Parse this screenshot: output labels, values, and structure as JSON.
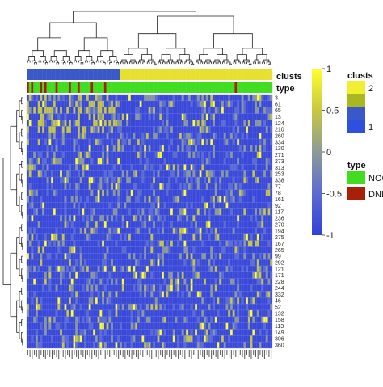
{
  "chart_data": {
    "type": "heatmap",
    "title": "",
    "annotations": {
      "clusts_label": "clusts",
      "type_label": "type",
      "clusts_row": [
        1,
        1,
        1,
        1,
        1,
        1,
        1,
        1,
        1,
        1,
        1,
        1,
        1,
        1,
        1,
        1,
        1,
        1,
        1,
        1,
        1,
        1,
        1,
        1,
        1,
        1,
        1,
        1,
        1,
        1,
        1,
        1,
        1,
        1,
        1,
        1,
        1,
        1,
        1,
        1,
        1,
        1,
        2,
        2,
        2,
        2,
        2,
        2,
        2,
        2,
        2,
        2,
        2,
        2,
        2,
        2,
        2,
        2,
        2,
        2,
        2,
        2,
        2,
        2,
        2,
        2,
        2,
        2,
        2,
        2,
        2,
        2,
        2,
        2,
        2,
        2,
        2,
        2,
        2,
        2,
        2,
        2,
        2,
        2,
        2,
        2,
        2,
        2,
        2,
        2,
        2,
        2,
        2,
        2,
        2,
        2,
        2,
        2,
        2,
        2,
        2,
        2,
        2,
        2,
        2,
        2,
        2,
        2,
        2,
        2,
        2
      ],
      "type_row": [
        "DNI",
        "NOC",
        "DNI",
        "NOC",
        "NOC",
        "NOC",
        "DNI",
        "NOC",
        "DNI",
        "NOC",
        "NOC",
        "NOC",
        "NOC",
        "DNI",
        "NOC",
        "NOC",
        "NOC",
        "NOC",
        "NOC",
        "DNI",
        "NOC",
        "NOC",
        "NOC",
        "DNI",
        "NOC",
        "NOC",
        "NOC",
        "NOC",
        "NOC",
        "DNI",
        "NOC",
        "NOC",
        "NOC",
        "NOC",
        "NOC",
        "DNI",
        "NOC",
        "NOC",
        "NOC",
        "NOC",
        "NOC",
        "NOC",
        "NOC",
        "NOC",
        "NOC",
        "NOC",
        "NOC",
        "NOC",
        "NOC",
        "NOC",
        "NOC",
        "NOC",
        "NOC",
        "NOC",
        "NOC",
        "NOC",
        "NOC",
        "NOC",
        "NOC",
        "NOC",
        "NOC",
        "NOC",
        "NOC",
        "NOC",
        "NOC",
        "NOC",
        "NOC",
        "NOC",
        "NOC",
        "NOC",
        "NOC",
        "NOC",
        "NOC",
        "NOC",
        "NOC",
        "NOC",
        "NOC",
        "NOC",
        "NOC",
        "NOC",
        "NOC",
        "NOC",
        "NOC",
        "NOC",
        "NOC",
        "NOC",
        "NOC",
        "NOC",
        "NOC",
        "NOC",
        "NOC",
        "NOC",
        "NOC",
        "NOC",
        "DNI",
        "NOC",
        "NOC",
        "NOC",
        "NOC",
        "NOC",
        "NOC",
        "NOC",
        "NOC",
        "NOC",
        "NOC",
        "NOC",
        "NOC",
        "NOC",
        "NOC",
        "NOC",
        "NOC"
      ]
    },
    "row_labels": [
      "3",
      "61",
      "65",
      "13",
      "124",
      "210",
      "260",
      "334",
      "130",
      "271",
      "273",
      "313",
      "253",
      "338",
      "77",
      "78",
      "161",
      "92",
      "117",
      "236",
      "270",
      "194",
      "275",
      "167",
      "265",
      "99",
      "292",
      "121",
      "171",
      "228",
      "244",
      "332",
      "46",
      "52",
      "132",
      "158",
      "113",
      "149",
      "306",
      "360"
    ],
    "num_columns": 111,
    "value_range": [
      -1,
      1
    ],
    "color_scale": [
      {
        "value": -1,
        "color": "#3040d8"
      },
      {
        "value": -0.5,
        "color": "#5c6cd0"
      },
      {
        "value": 0,
        "color": "#8c9a98"
      },
      {
        "value": 0.5,
        "color": "#c8c840"
      },
      {
        "value": 1,
        "color": "#ffff30"
      }
    ],
    "colorbar": {
      "ticks": [
        "1",
        "0.5",
        "0",
        "-0.5",
        "-1"
      ],
      "tick_values": [
        1,
        0.5,
        0,
        -0.5,
        -1
      ]
    },
    "legends": [
      {
        "title": "clusts",
        "entries": [
          {
            "label": "2",
            "colors": [
              "#f0f030",
              "#a8b820"
            ]
          },
          {
            "label": "1",
            "colors": [
              "#3a58c8",
              "#2f4fe0"
            ]
          }
        ]
      },
      {
        "title": "type",
        "entries": [
          {
            "label": "NOC",
            "color": "#40dd20"
          },
          {
            "label": "DNI",
            "color": "#a82008"
          }
        ]
      }
    ],
    "colors": {
      "clust1": "#3a58c8",
      "clust2": "#e8e030",
      "noc": "#40dd20",
      "dni": "#a82008",
      "background": "#3a48d8"
    }
  }
}
